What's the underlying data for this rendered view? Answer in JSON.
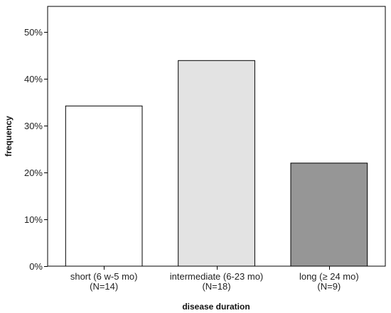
{
  "chart_data": {
    "type": "bar",
    "xlabel": "disease duration",
    "ylabel": "frequency",
    "categories": [
      {
        "line1": "short (6 w-5 mo)",
        "line2": "(N=14)",
        "value": 34.2,
        "color": "#ffffff"
      },
      {
        "line1": "intermediate (6-23 mo)",
        "line2": "(N=18)",
        "value": 43.9,
        "color": "#e3e3e3"
      },
      {
        "line1": "long (≥ 24 mo)",
        "line2": "(N=9)",
        "value": 22.0,
        "color": "#969696"
      }
    ],
    "ylim": [
      0,
      50
    ],
    "yticks": [
      0,
      10,
      20,
      30,
      40,
      50
    ],
    "ytick_labels": [
      "0%",
      "10%",
      "20%",
      "30%",
      "40%",
      "50%"
    ],
    "grid": false,
    "legend": "none"
  }
}
